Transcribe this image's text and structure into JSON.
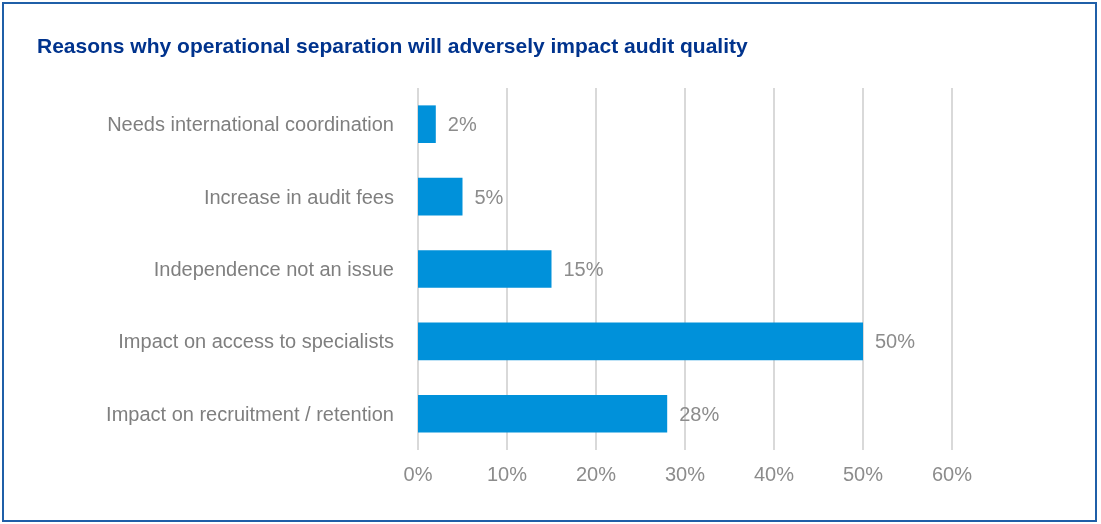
{
  "chart_data": {
    "type": "bar",
    "orientation": "horizontal",
    "title": "Reasons why operational separation will adversely impact audit quality",
    "categories": [
      "Needs international coordination",
      "Increase in audit fees",
      "Independence not an issue",
      "Impact on access to specialists",
      "Impact on recruitment / retention"
    ],
    "values": [
      2,
      5,
      15,
      50,
      28
    ],
    "value_labels": [
      "2%",
      "5%",
      "15%",
      "50%",
      "28%"
    ],
    "color": "#0091da",
    "xlim": [
      0,
      60
    ],
    "xticks": [
      {
        "value": 0,
        "label": "0%"
      },
      {
        "value": 10,
        "label": "10%"
      },
      {
        "value": 20,
        "label": "20%"
      },
      {
        "value": 30,
        "label": "30%"
      },
      {
        "value": 40,
        "label": "40%"
      },
      {
        "value": 50,
        "label": "50%"
      },
      {
        "value": 60,
        "label": "60%"
      }
    ],
    "grid": "x"
  }
}
